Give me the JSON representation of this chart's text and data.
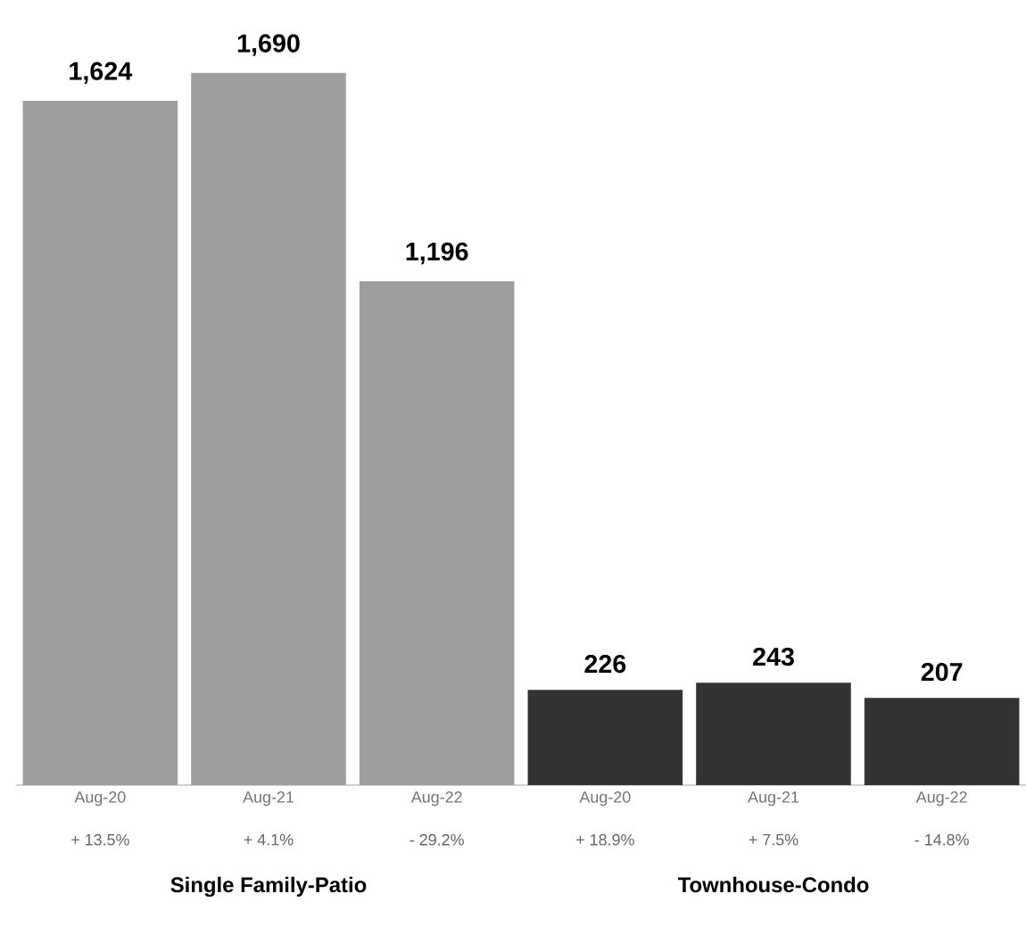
{
  "chart_data": {
    "type": "bar",
    "categories": [
      "Aug-20",
      "Aug-21",
      "Aug-22",
      "Aug-20",
      "Aug-21",
      "Aug-22"
    ],
    "values": [
      1624,
      1690,
      1196,
      226,
      243,
      207
    ],
    "value_labels": [
      "1,624",
      "1,690",
      "1,196",
      "226",
      "243",
      "207"
    ],
    "colors": [
      "#9e9e9e",
      "#9e9e9e",
      "#9e9e9e",
      "#333333",
      "#333333",
      "#333333"
    ],
    "annotations": [
      "+ 13.5%",
      "+ 4.1%",
      "- 29.2%",
      "+ 18.9%",
      "+ 7.5%",
      "- 14.8%",
      "Single Family-Patio",
      "Townhouse-Condo"
    ],
    "tick_labels": "x"
  }
}
